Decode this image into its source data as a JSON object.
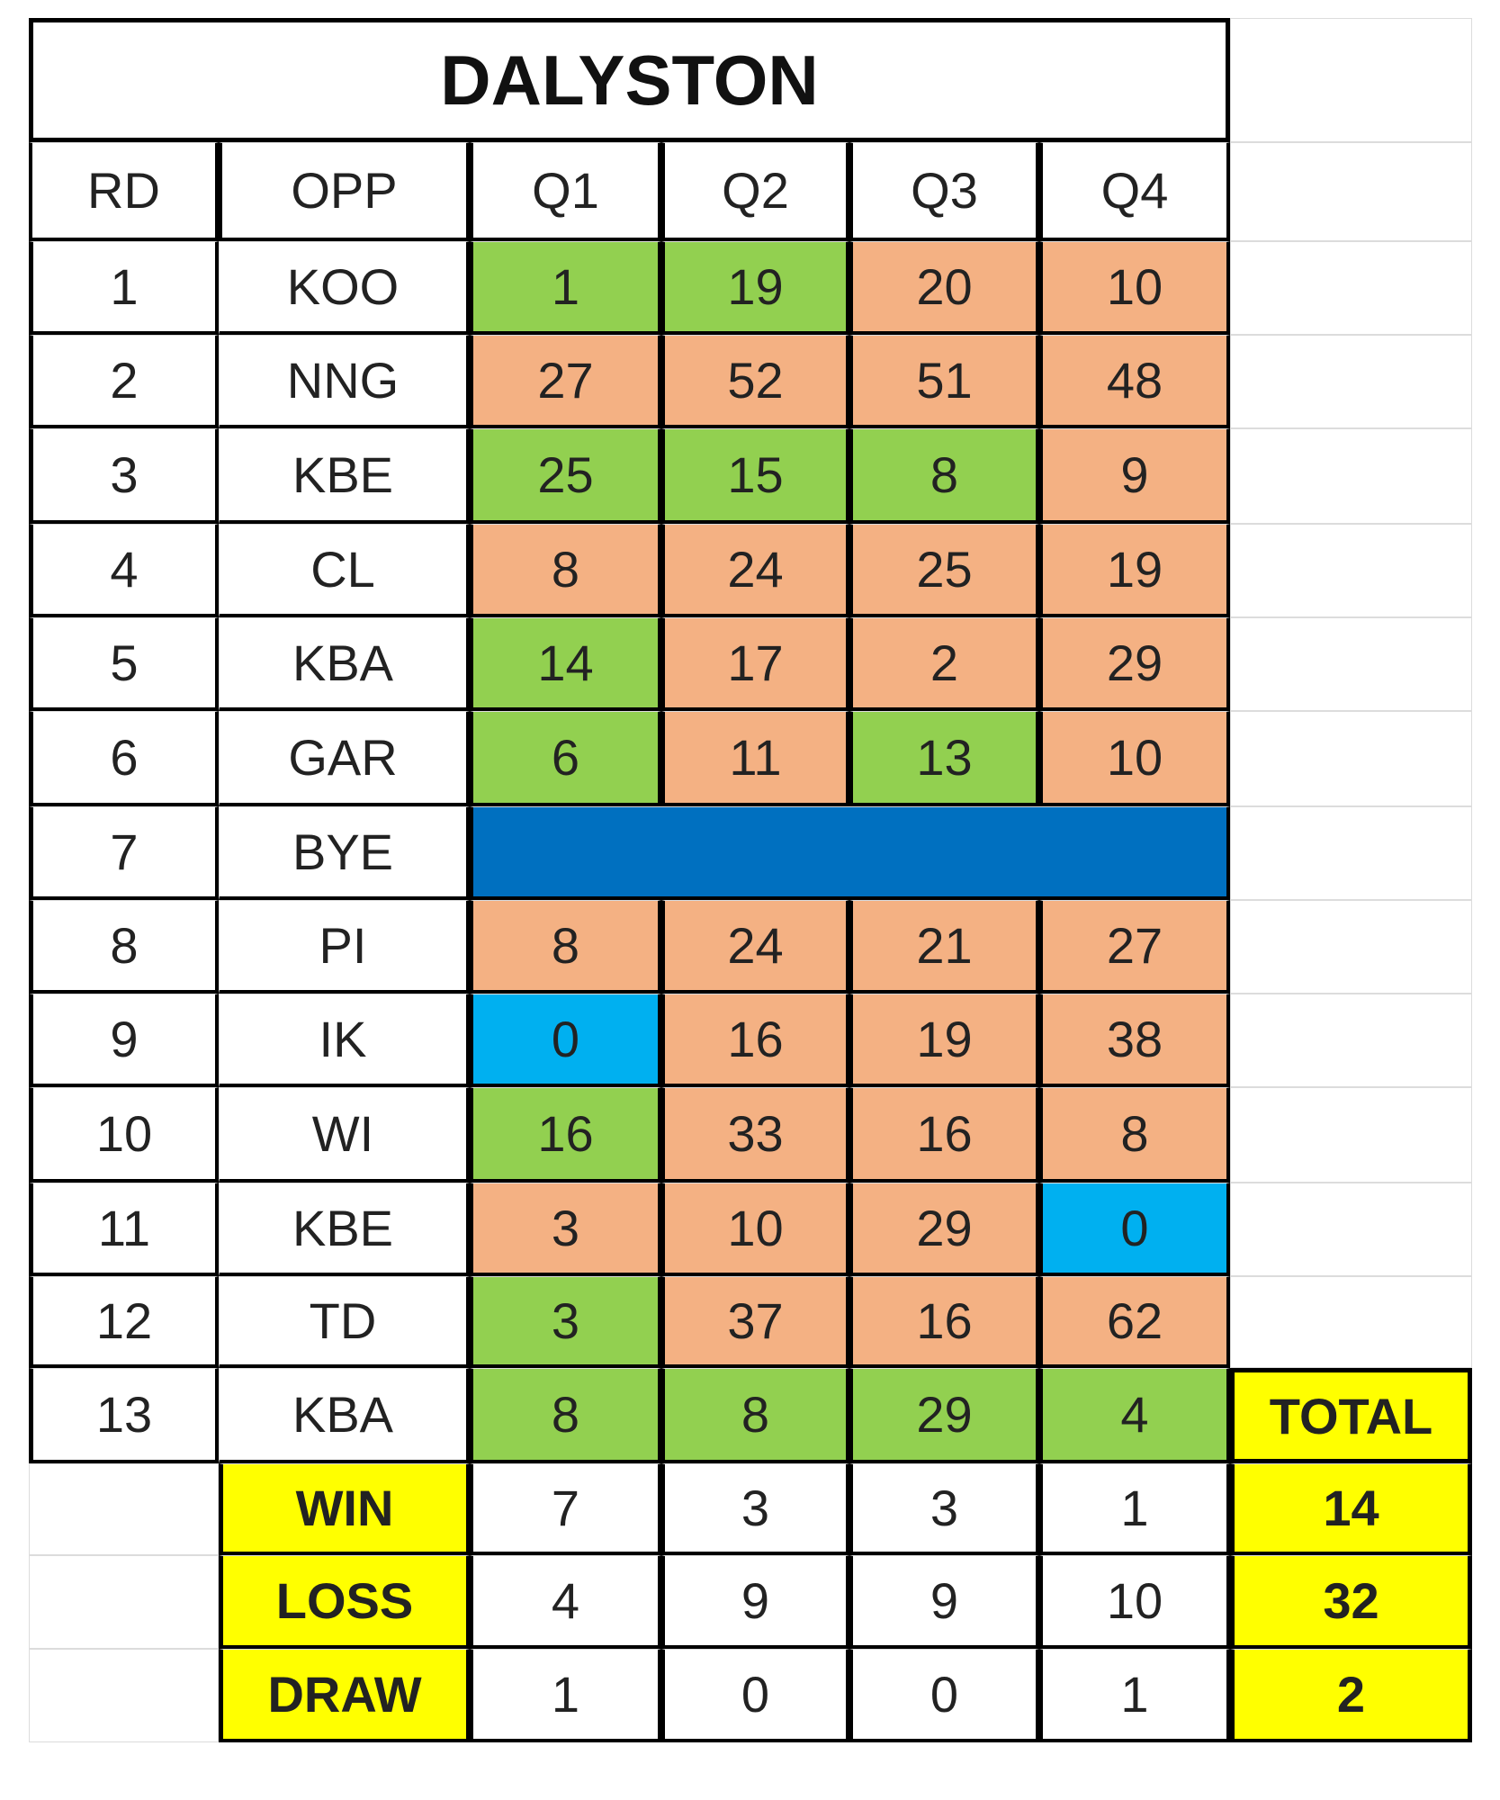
{
  "sheet": {
    "title": "DALYSTON",
    "headers": [
      "RD",
      "OPP",
      "Q1",
      "Q2",
      "Q3",
      "Q4"
    ],
    "colors": {
      "win": "#92d050",
      "loss": "#f4b183",
      "draw": "#00b0f0",
      "bye": "#0070c0",
      "summary": "#ffff00",
      "border": "#000000",
      "gridline": "#dcdcdc"
    },
    "rounds": [
      {
        "rd": "1",
        "opp": "KOO",
        "q": [
          "1",
          "19",
          "20",
          "10"
        ],
        "r": [
          "win",
          "win",
          "loss",
          "loss"
        ]
      },
      {
        "rd": "2",
        "opp": "NNG",
        "q": [
          "27",
          "52",
          "51",
          "48"
        ],
        "r": [
          "loss",
          "loss",
          "loss",
          "loss"
        ]
      },
      {
        "rd": "3",
        "opp": "KBE",
        "q": [
          "25",
          "15",
          "8",
          "9"
        ],
        "r": [
          "win",
          "win",
          "win",
          "loss"
        ]
      },
      {
        "rd": "4",
        "opp": "CL",
        "q": [
          "8",
          "24",
          "25",
          "19"
        ],
        "r": [
          "loss",
          "loss",
          "loss",
          "loss"
        ]
      },
      {
        "rd": "5",
        "opp": "KBA",
        "q": [
          "14",
          "17",
          "2",
          "29"
        ],
        "r": [
          "win",
          "loss",
          "loss",
          "loss"
        ]
      },
      {
        "rd": "6",
        "opp": "GAR",
        "q": [
          "6",
          "11",
          "13",
          "10"
        ],
        "r": [
          "win",
          "loss",
          "win",
          "loss"
        ]
      },
      {
        "rd": "7",
        "opp": "BYE",
        "bye": true
      },
      {
        "rd": "8",
        "opp": "PI",
        "q": [
          "8",
          "24",
          "21",
          "27"
        ],
        "r": [
          "loss",
          "loss",
          "loss",
          "loss"
        ]
      },
      {
        "rd": "9",
        "opp": "IK",
        "q": [
          "0",
          "16",
          "19",
          "38"
        ],
        "r": [
          "draw",
          "loss",
          "loss",
          "loss"
        ]
      },
      {
        "rd": "10",
        "opp": "WI",
        "q": [
          "16",
          "33",
          "16",
          "8"
        ],
        "r": [
          "win",
          "loss",
          "loss",
          "loss"
        ]
      },
      {
        "rd": "11",
        "opp": "KBE",
        "q": [
          "3",
          "10",
          "29",
          "0"
        ],
        "r": [
          "loss",
          "loss",
          "loss",
          "draw"
        ]
      },
      {
        "rd": "12",
        "opp": "TD",
        "q": [
          "3",
          "37",
          "16",
          "62"
        ],
        "r": [
          "win",
          "loss",
          "loss",
          "loss"
        ]
      },
      {
        "rd": "13",
        "opp": "KBA",
        "q": [
          "8",
          "8",
          "29",
          "4"
        ],
        "r": [
          "win",
          "win",
          "win",
          "win"
        ]
      }
    ],
    "total_label": "TOTAL",
    "summary": [
      {
        "label": "WIN",
        "q": [
          "7",
          "3",
          "3",
          "1"
        ],
        "total": "14"
      },
      {
        "label": "LOSS",
        "q": [
          "4",
          "9",
          "9",
          "10"
        ],
        "total": "32"
      },
      {
        "label": "DRAW",
        "q": [
          "1",
          "0",
          "0",
          "1"
        ],
        "total": "2"
      }
    ]
  }
}
